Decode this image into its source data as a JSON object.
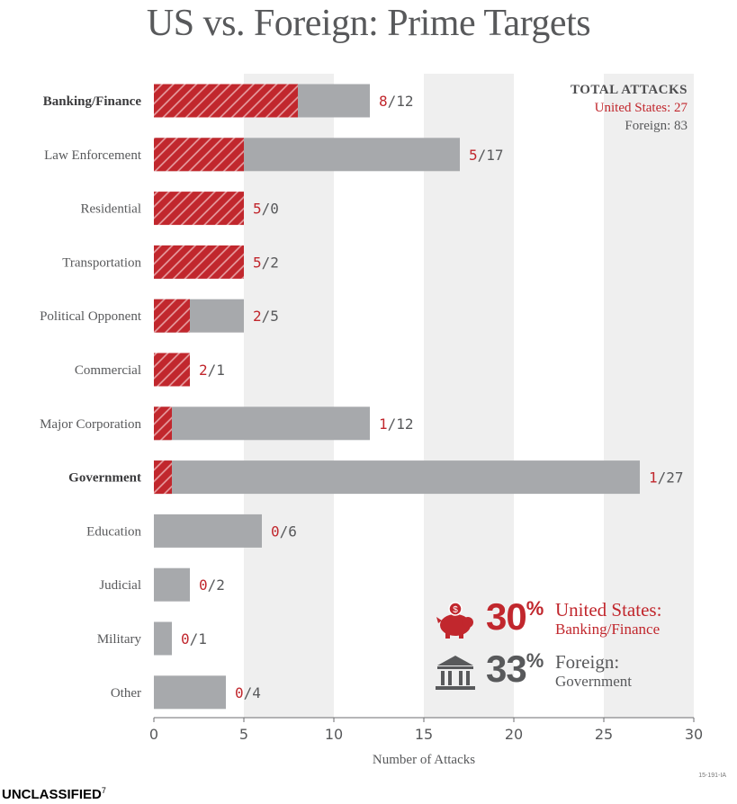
{
  "title": "US vs. Foreign: Prime Targets",
  "legend": {
    "header": "TOTAL ATTACKS",
    "us_label": "United States: 27",
    "foreign_label": "Foreign: 83"
  },
  "stats": {
    "us": {
      "percent": "30",
      "percent_sign": "%",
      "line1": "United States:",
      "line2": "Banking/Finance",
      "icon": "piggy-bank-icon"
    },
    "foreign": {
      "percent": "33",
      "percent_sign": "%",
      "line1": "Foreign:",
      "line2": "Government",
      "icon": "government-building-icon"
    }
  },
  "footer": {
    "code": "15-191-IA",
    "classification": "UNCLASSIFIED",
    "footnote": "7"
  },
  "colors": {
    "us": "#c1272d",
    "foreign": "#a7a9ac",
    "band": "#efefef",
    "text": "#58595b"
  },
  "chart_data": {
    "type": "bar",
    "orientation": "horizontal",
    "stacking": "overlaid",
    "title": "US vs. Foreign: Prime Targets",
    "xlabel": "Number of Attacks",
    "ylabel": "",
    "xlim": [
      0,
      30
    ],
    "xticks": [
      0,
      5,
      10,
      15,
      20,
      25,
      30
    ],
    "categories": [
      "Banking/Finance",
      "Law Enforcement",
      "Residential",
      "Transportation",
      "Political Opponent",
      "Commercial",
      "Major Corporation",
      "Government",
      "Education",
      "Judicial",
      "Military",
      "Other"
    ],
    "bold_categories": [
      "Banking/Finance",
      "Government"
    ],
    "series": [
      {
        "name": "United States",
        "values": [
          8,
          5,
          5,
          5,
          2,
          2,
          1,
          1,
          0,
          0,
          0,
          0
        ]
      },
      {
        "name": "Foreign",
        "values": [
          12,
          17,
          0,
          2,
          5,
          1,
          12,
          27,
          6,
          2,
          1,
          4
        ]
      }
    ],
    "value_labels": [
      "8/12",
      "5/17",
      "5/0",
      "5/2",
      "2/5",
      "2/1",
      "1/12",
      "1/27",
      "0/6",
      "0/2",
      "0/1",
      "0/4"
    ]
  }
}
